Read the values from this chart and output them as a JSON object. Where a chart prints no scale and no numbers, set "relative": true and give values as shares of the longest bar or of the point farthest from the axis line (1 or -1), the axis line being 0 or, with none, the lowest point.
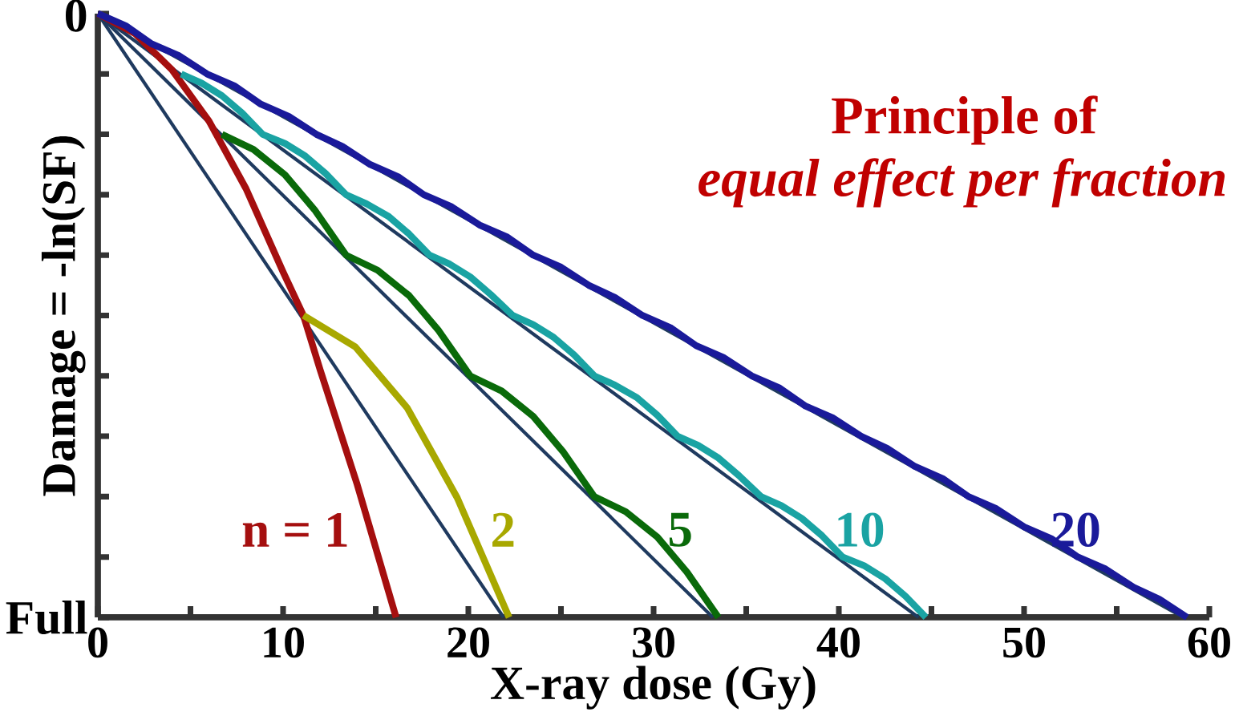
{
  "chart_data": {
    "type": "line",
    "title": "Principle of",
    "subtitle": "equal effect per fraction",
    "xlabel": "X-ray dose  (Gy)",
    "ylabel": "Damage = -ln(SF)",
    "annotations": [
      "0",
      "Full"
    ],
    "relative": true,
    "xlim": [
      0,
      60
    ],
    "xticks": [
      0,
      {
        "value": 5,
        "label": null
      },
      10,
      {
        "value": 15,
        "label": null
      },
      20,
      {
        "value": 25,
        "label": null
      },
      30,
      {
        "value": 35,
        "label": null
      },
      40,
      {
        "value": 45,
        "label": null
      },
      50,
      {
        "value": 55,
        "label": null
      },
      60
    ],
    "marker": "none",
    "series": [
      {
        "color": "#1f3a5f",
        "x": [
          0,
          21.9
        ],
        "values": [
          0,
          -1
        ]
      },
      {
        "color": "#1f3a5f",
        "x": [
          0,
          33.2
        ],
        "values": [
          0,
          -1
        ]
      },
      {
        "color": "#1f3a5f",
        "x": [
          0,
          44.3
        ],
        "values": [
          0,
          -1
        ]
      },
      {
        "color": "#1f3a5f",
        "x": [
          0,
          58.6
        ],
        "values": [
          0,
          -1
        ]
      },
      {
        "name": "n = 1",
        "color": "#a50f0f",
        "x": [
          0,
          2,
          4,
          6,
          8,
          10,
          11.1,
          12,
          14,
          16.1
        ],
        "values": [
          0,
          -0.033,
          -0.093,
          -0.178,
          -0.29,
          -0.428,
          -0.5,
          -0.59,
          -0.78,
          -1
        ]
      },
      {
        "name": "2",
        "color": "#a8a800",
        "x": [
          11.1,
          13.9,
          16.7,
          19.4,
          22.2
        ],
        "values": [
          -0.5,
          -0.552,
          -0.653,
          -0.802,
          -1
        ]
      },
      {
        "name": "5",
        "color": "#0a6a0a",
        "x": [
          6.7,
          8.4,
          10.1,
          11.7,
          13.4,
          15.1,
          16.8,
          18.4,
          20.1,
          21.8,
          23.5,
          25.1,
          26.8,
          28.5,
          30.2,
          31.8,
          33.5
        ],
        "values": [
          -0.2,
          -0.225,
          -0.267,
          -0.325,
          -0.4,
          -0.425,
          -0.467,
          -0.525,
          -0.6,
          -0.625,
          -0.667,
          -0.725,
          -0.8,
          -0.825,
          -0.867,
          -0.925,
          -1
        ]
      },
      {
        "name": "10",
        "color": "#1aa3a3",
        "x": [
          4.5,
          5.6,
          6.7,
          7.8,
          8.9,
          10.1,
          11.2,
          12.3,
          13.4,
          14.5,
          15.7,
          16.8,
          17.9,
          19.0,
          20.1,
          21.2,
          22.4,
          23.5,
          24.6,
          25.7,
          26.8,
          27.9,
          29.1,
          30.2,
          31.3,
          32.4,
          33.5,
          34.6,
          35.8,
          36.9,
          38.0,
          39.1,
          40.2,
          41.4,
          42.5,
          43.6,
          44.7
        ],
        "values": [
          -0.1,
          -0.115,
          -0.136,
          -0.165,
          -0.2,
          -0.215,
          -0.236,
          -0.265,
          -0.3,
          -0.315,
          -0.336,
          -0.365,
          -0.4,
          -0.415,
          -0.436,
          -0.465,
          -0.5,
          -0.515,
          -0.536,
          -0.565,
          -0.6,
          -0.615,
          -0.636,
          -0.665,
          -0.7,
          -0.715,
          -0.736,
          -0.765,
          -0.8,
          -0.815,
          -0.836,
          -0.865,
          -0.9,
          -0.915,
          -0.936,
          -0.965,
          -1
        ]
      },
      {
        "name": "20",
        "color": "#1a1a9a",
        "x": [
          0,
          1.5,
          2.9,
          4.4,
          5.9,
          7.4,
          8.8,
          10.3,
          11.8,
          13.2,
          14.7,
          16.2,
          17.6,
          19.1,
          20.6,
          22.1,
          23.5,
          25.0,
          26.5,
          27.9,
          29.4,
          30.9,
          32.3,
          33.8,
          35.3,
          36.8,
          38.2,
          39.7,
          41.2,
          42.6,
          44.1,
          45.6,
          47.0,
          48.5,
          50.0,
          51.5,
          52.9,
          54.4,
          55.9,
          57.3,
          58.8
        ],
        "values": [
          0,
          -0.02,
          -0.05,
          -0.07,
          -0.1,
          -0.12,
          -0.15,
          -0.17,
          -0.2,
          -0.22,
          -0.25,
          -0.27,
          -0.3,
          -0.32,
          -0.35,
          -0.37,
          -0.4,
          -0.42,
          -0.45,
          -0.47,
          -0.5,
          -0.52,
          -0.55,
          -0.57,
          -0.6,
          -0.62,
          -0.65,
          -0.67,
          -0.7,
          -0.72,
          -0.75,
          -0.77,
          -0.8,
          -0.82,
          -0.85,
          -0.87,
          -0.9,
          -0.92,
          -0.95,
          -0.97,
          -1
        ]
      }
    ]
  }
}
